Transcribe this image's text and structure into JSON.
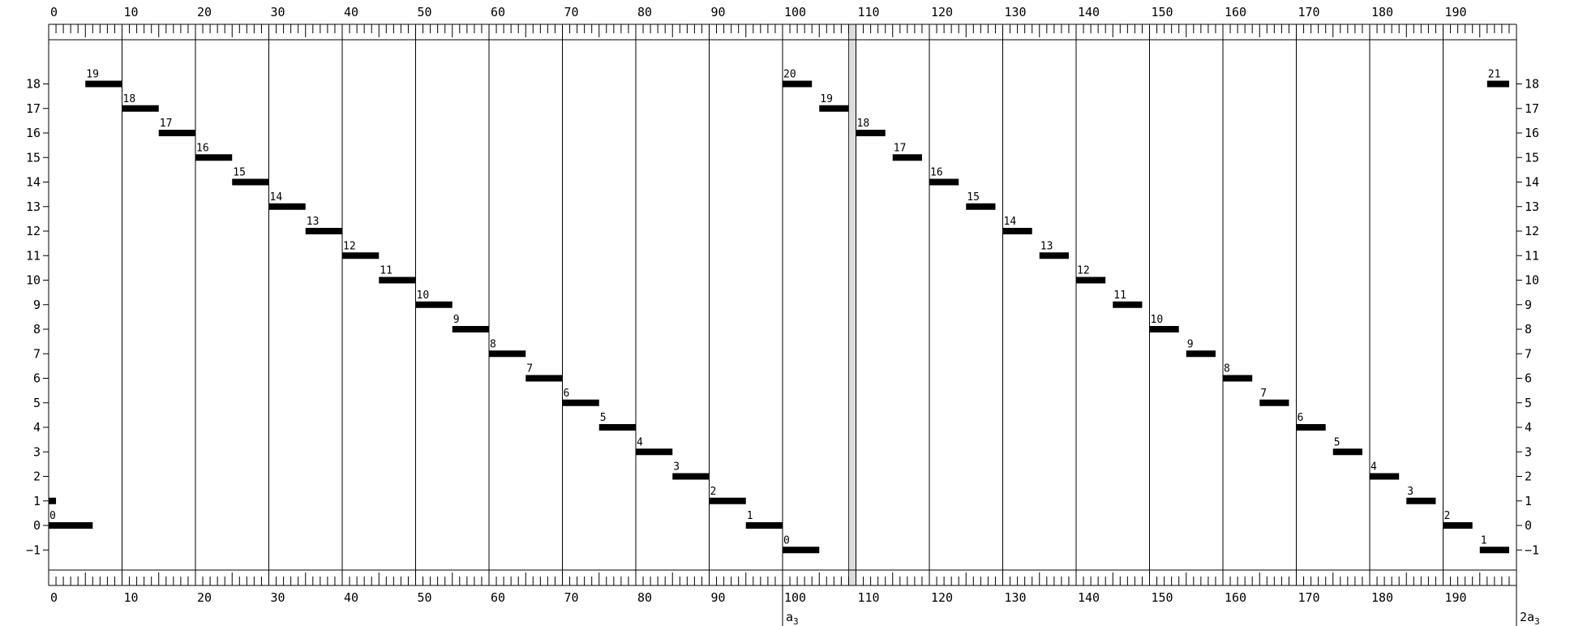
{
  "chart_data": {
    "type": "bar",
    "orientation": "horizontal-segments",
    "title": "",
    "xlabel": "",
    "ylabel": "",
    "xlim": [
      0,
      200
    ],
    "ylim": [
      -2,
      20
    ],
    "x_major_ticks": [
      0,
      10,
      20,
      30,
      40,
      50,
      60,
      70,
      80,
      90,
      100,
      110,
      120,
      130,
      140,
      150,
      160,
      170,
      180,
      190
    ],
    "x_minor_step": 1,
    "x_section_boundaries": [
      10,
      20,
      30,
      40,
      50,
      60,
      70,
      80,
      90,
      100,
      110,
      120,
      130,
      140,
      150,
      160,
      170,
      180,
      190
    ],
    "y_ticks": [
      -1,
      0,
      1,
      2,
      3,
      4,
      5,
      6,
      7,
      8,
      9,
      10,
      11,
      12,
      13,
      14,
      15,
      16,
      17,
      18
    ],
    "y_tick_labels": [
      "−1",
      "0",
      "1",
      "2",
      "3",
      "4",
      "5",
      "6",
      "7",
      "8",
      "9",
      "10",
      "11",
      "12",
      "13",
      "14",
      "15",
      "16",
      "17",
      "18"
    ],
    "highlight_band": {
      "x_start": 109,
      "x_end": 110,
      "color": "#dcdcdc"
    },
    "markers": [
      {
        "x": 100,
        "label": "a",
        "sub": "3"
      },
      {
        "x": 200,
        "label": "2a",
        "sub": "3"
      }
    ],
    "segments": [
      {
        "x_start": 0,
        "x_end": 1,
        "y": 1,
        "label": ""
      },
      {
        "x_start": 0,
        "x_end": 6,
        "y": 0,
        "label": "0"
      },
      {
        "x_start": 5,
        "x_end": 10,
        "y": 18,
        "label": "19"
      },
      {
        "x_start": 10,
        "x_end": 15,
        "y": 17,
        "label": "18"
      },
      {
        "x_start": 15,
        "x_end": 20,
        "y": 16,
        "label": "17"
      },
      {
        "x_start": 20,
        "x_end": 25,
        "y": 15,
        "label": "16"
      },
      {
        "x_start": 25,
        "x_end": 30,
        "y": 14,
        "label": "15"
      },
      {
        "x_start": 30,
        "x_end": 35,
        "y": 13,
        "label": "14"
      },
      {
        "x_start": 35,
        "x_end": 40,
        "y": 12,
        "label": "13"
      },
      {
        "x_start": 40,
        "x_end": 45,
        "y": 11,
        "label": "12"
      },
      {
        "x_start": 45,
        "x_end": 50,
        "y": 10,
        "label": "11"
      },
      {
        "x_start": 50,
        "x_end": 55,
        "y": 9,
        "label": "10"
      },
      {
        "x_start": 55,
        "x_end": 60,
        "y": 8,
        "label": "9"
      },
      {
        "x_start": 60,
        "x_end": 65,
        "y": 7,
        "label": "8"
      },
      {
        "x_start": 65,
        "x_end": 70,
        "y": 6,
        "label": "7"
      },
      {
        "x_start": 70,
        "x_end": 75,
        "y": 5,
        "label": "6"
      },
      {
        "x_start": 75,
        "x_end": 80,
        "y": 4,
        "label": "5"
      },
      {
        "x_start": 80,
        "x_end": 85,
        "y": 3,
        "label": "4"
      },
      {
        "x_start": 85,
        "x_end": 90,
        "y": 2,
        "label": "3"
      },
      {
        "x_start": 90,
        "x_end": 95,
        "y": 1,
        "label": "2"
      },
      {
        "x_start": 95,
        "x_end": 100,
        "y": 0,
        "label": "1"
      },
      {
        "x_start": 100,
        "x_end": 104,
        "y": 18,
        "label": "20"
      },
      {
        "x_start": 100,
        "x_end": 105,
        "y": -1,
        "label": "0"
      },
      {
        "x_start": 105,
        "x_end": 109,
        "y": 17,
        "label": "19"
      },
      {
        "x_start": 110,
        "x_end": 114,
        "y": 16,
        "label": "18"
      },
      {
        "x_start": 115,
        "x_end": 119,
        "y": 15,
        "label": "17"
      },
      {
        "x_start": 120,
        "x_end": 124,
        "y": 14,
        "label": "16"
      },
      {
        "x_start": 125,
        "x_end": 129,
        "y": 13,
        "label": "15"
      },
      {
        "x_start": 130,
        "x_end": 134,
        "y": 12,
        "label": "14"
      },
      {
        "x_start": 135,
        "x_end": 139,
        "y": 11,
        "label": "13"
      },
      {
        "x_start": 140,
        "x_end": 144,
        "y": 10,
        "label": "12"
      },
      {
        "x_start": 145,
        "x_end": 149,
        "y": 9,
        "label": "11"
      },
      {
        "x_start": 150,
        "x_end": 154,
        "y": 8,
        "label": "10"
      },
      {
        "x_start": 155,
        "x_end": 159,
        "y": 7,
        "label": "9"
      },
      {
        "x_start": 160,
        "x_end": 164,
        "y": 6,
        "label": "8"
      },
      {
        "x_start": 165,
        "x_end": 169,
        "y": 5,
        "label": "7"
      },
      {
        "x_start": 170,
        "x_end": 174,
        "y": 4,
        "label": "6"
      },
      {
        "x_start": 175,
        "x_end": 179,
        "y": 3,
        "label": "5"
      },
      {
        "x_start": 180,
        "x_end": 184,
        "y": 2,
        "label": "4"
      },
      {
        "x_start": 185,
        "x_end": 189,
        "y": 1,
        "label": "3"
      },
      {
        "x_start": 190,
        "x_end": 194,
        "y": 0,
        "label": "2"
      },
      {
        "x_start": 195,
        "x_end": 199,
        "y": -1,
        "label": "1"
      },
      {
        "x_start": 196,
        "x_end": 199,
        "y": 18,
        "label": "21"
      }
    ]
  }
}
